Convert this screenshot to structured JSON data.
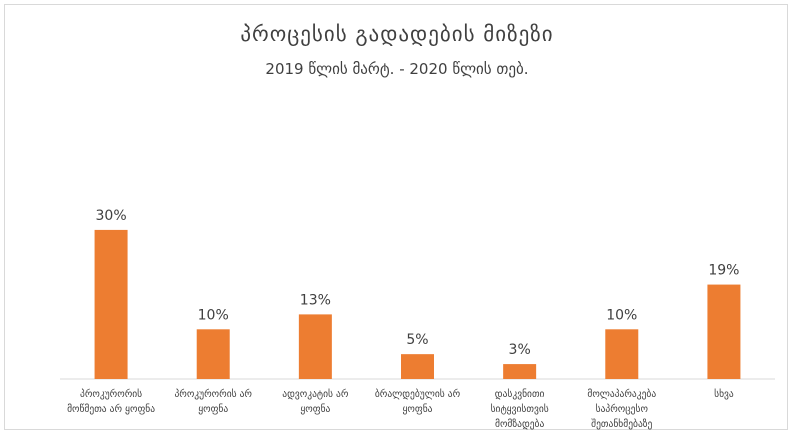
{
  "chart_data": {
    "type": "bar",
    "title": "პროცესის გადადების მიზეზი",
    "subtitle": "2019 წლის მარტ. - 2020 წლის თებ.",
    "categories": [
      [
        "პროკურორის",
        "მოწმეთა არ ყოფნა"
      ],
      [
        "პროკურორის არ",
        "ყოფნა"
      ],
      [
        "ადვოკატის არ",
        "ყოფნა"
      ],
      [
        "ბრალდებულის არ",
        "ყოფნა"
      ],
      [
        "დასკვნითი",
        "სიტყვისთვის",
        "მომზადება"
      ],
      [
        "მოლაპარაკება",
        "საპროცესო",
        "შეთანხმებაზე"
      ],
      [
        "სხვა"
      ]
    ],
    "values": [
      30,
      10,
      13,
      5,
      3,
      10,
      19
    ],
    "data_labels": [
      "30%",
      "10%",
      "13%",
      "5%",
      "3%",
      "10%",
      "19%"
    ],
    "unit": "%",
    "ylim": [
      0,
      33
    ],
    "grid": false,
    "legend": "none",
    "bar_color": "#ed7d31"
  }
}
